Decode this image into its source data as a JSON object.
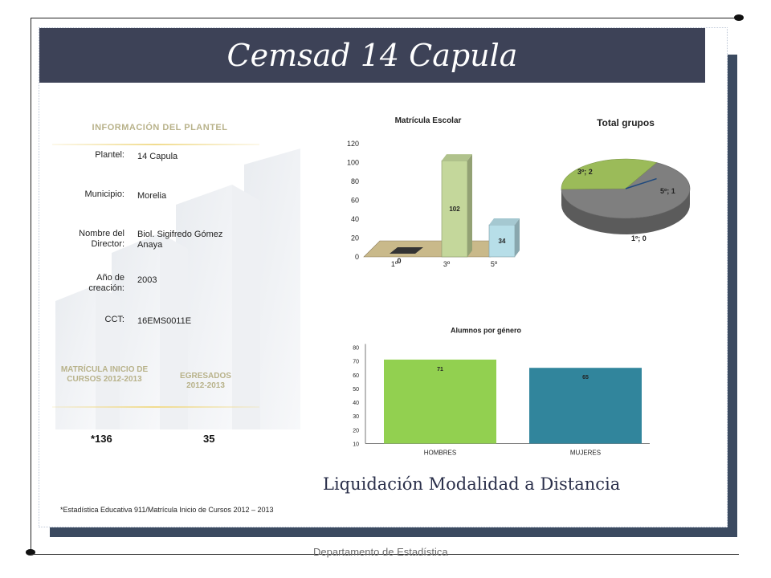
{
  "title": "Cemsad 14 Capula",
  "info": {
    "heading": "INFORMACIÓN DEL PLANTEL",
    "rows": [
      {
        "label": "Plantel:",
        "value": "14 Capula"
      },
      {
        "label": "Municipio:",
        "value": "Morelia"
      },
      {
        "label": "Nombre del Director:",
        "value": "Biol. Sigifredo Gómez Anaya"
      },
      {
        "label": "Año de creación:",
        "value": "2003"
      },
      {
        "label": "CCT:",
        "value": "16EMS0011E"
      }
    ]
  },
  "enrollment": {
    "matricula_label": "MATRÍCULA INICIO DE CURSOS 2012-2013",
    "egresados_label": "EGRESADOS 2012-2013",
    "matricula_value": "*136",
    "egresados_value": "35"
  },
  "subtitle": "Liquidación Modalidad a Distancia",
  "footnote": "*Estadística Educativa 911/Matrícula Inicio de Cursos 2012 – 2013",
  "department": "Departamento de Estadística",
  "colors": {
    "title_bar": "#3d4257",
    "frame_shadow": "#3b4a60",
    "bar_green_light": "#c4d79b",
    "bar_cyan_light": "#b7dee8",
    "pie_gray": "#7f7f7f",
    "pie_green": "#9bbb59",
    "bar_green": "#92d050",
    "bar_teal": "#31859c"
  },
  "chart_data": [
    {
      "type": "bar",
      "title": "Matrícula Escolar",
      "categories": [
        "1º",
        "3º",
        "5º"
      ],
      "values": [
        0,
        102,
        34
      ],
      "ylim": [
        0,
        120
      ],
      "yticks": [
        "0",
        "20",
        "40",
        "60",
        "80",
        "100",
        "120"
      ],
      "data_labels": [
        "0",
        "102",
        "34"
      ],
      "style": "3d"
    },
    {
      "type": "pie",
      "title": "Total grupos",
      "labels": [
        "3º; 2",
        "5º; 1",
        "1º; 0"
      ],
      "categories": [
        "3º",
        "5º",
        "1º"
      ],
      "values": [
        2,
        1,
        0
      ],
      "style": "3d"
    },
    {
      "type": "bar",
      "title": "Alumnos por género",
      "categories": [
        "HOMBRES",
        "MUJERES"
      ],
      "values": [
        71,
        65
      ],
      "ylim": [
        10,
        80
      ],
      "yticks": [
        "10",
        "20",
        "30",
        "40",
        "50",
        "60",
        "70",
        "80"
      ],
      "data_labels": [
        "71",
        "65"
      ]
    }
  ]
}
